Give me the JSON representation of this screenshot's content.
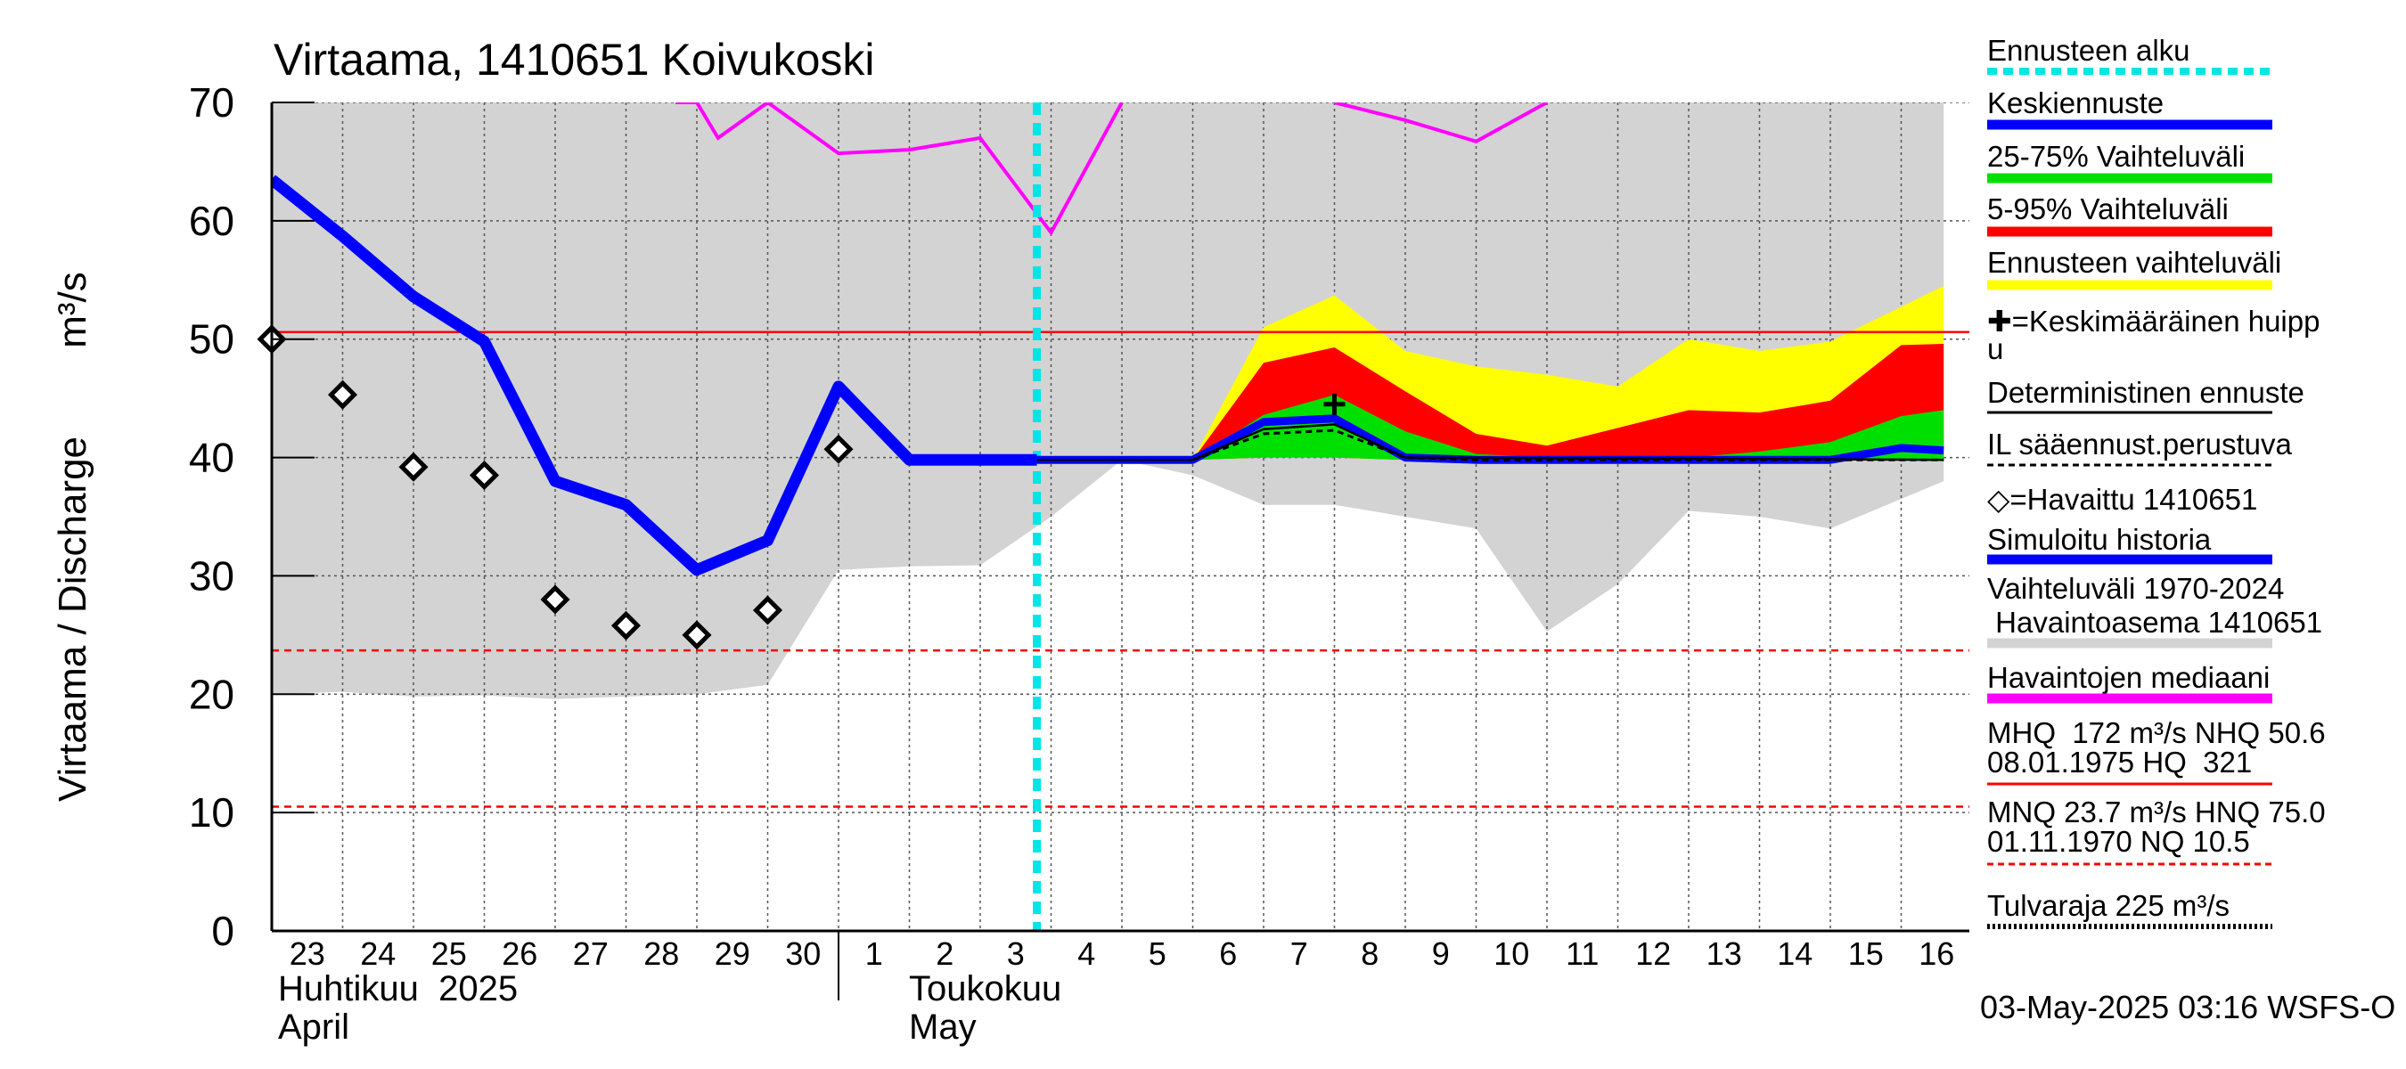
{
  "chart_data": {
    "type": "line",
    "title": "Virtaama, 1410651 Koivukoski",
    "ylabel": "Virtaama / Discharge",
    "yunit": "m³/s",
    "ylim": [
      0,
      70
    ],
    "yticks": [
      "0",
      "10",
      "20",
      "30",
      "40",
      "50",
      "60",
      "70"
    ],
    "grid": true,
    "legend_position": "right",
    "x_day_labels": [
      "23",
      "24",
      "25",
      "26",
      "27",
      "28",
      "29",
      "30",
      "1",
      "2",
      "3",
      "4",
      "5",
      "6",
      "7",
      "8",
      "9",
      "10",
      "11",
      "12",
      "13",
      "14",
      "15",
      "16"
    ],
    "month_labels": [
      {
        "fi": "Huhtikuu  2025",
        "en": "April"
      },
      {
        "fi": "Toukokuu",
        "en": "May"
      }
    ],
    "forecast_start_day": 10.8,
    "reference_lines": {
      "hq_red": 50.6,
      "mnq": 23.7,
      "nq": 10.5
    },
    "historical_range": {
      "upper": [
        [
          0,
          70
        ],
        [
          23.6,
          70
        ]
      ],
      "lower": [
        [
          0,
          20
        ],
        [
          1,
          20.2
        ],
        [
          2,
          19.8
        ],
        [
          3,
          19.9
        ],
        [
          4,
          19.6
        ],
        [
          5,
          19.8
        ],
        [
          6,
          20
        ],
        [
          7,
          20.8
        ],
        [
          8,
          30.5
        ],
        [
          9,
          30.8
        ],
        [
          10,
          30.9
        ],
        [
          11,
          35
        ],
        [
          12,
          39.8
        ],
        [
          13,
          38.5
        ],
        [
          14,
          36
        ],
        [
          15,
          36
        ],
        [
          16,
          35
        ],
        [
          17,
          34
        ],
        [
          18,
          25.3
        ],
        [
          19,
          29.3
        ],
        [
          20,
          35.5
        ],
        [
          21,
          35
        ],
        [
          22,
          34
        ],
        [
          23.6,
          38
        ]
      ]
    },
    "observed_median": [
      [
        5.7,
        70
      ],
      [
        6,
        70
      ],
      [
        6.3,
        67
      ],
      [
        7,
        70
      ],
      [
        8,
        65.7
      ],
      [
        9,
        66
      ],
      [
        10,
        67
      ],
      [
        11,
        59
      ],
      [
        12,
        70
      ]
    ],
    "observed_median_2": [
      [
        15,
        70
      ],
      [
        16,
        68.5
      ],
      [
        17,
        66.7
      ],
      [
        18,
        70
      ]
    ],
    "forecast_range": {
      "upper": [
        [
          13,
          39.8
        ],
        [
          14,
          51
        ],
        [
          15,
          53.7
        ],
        [
          16,
          49
        ],
        [
          17,
          47.7
        ],
        [
          18,
          47
        ],
        [
          19,
          46
        ],
        [
          20,
          50
        ],
        [
          21,
          49
        ],
        [
          22,
          49.8
        ],
        [
          23.6,
          54.5
        ]
      ],
      "lower": [
        [
          13,
          39.8
        ],
        [
          14,
          40
        ],
        [
          15,
          40
        ],
        [
          16,
          39.8
        ],
        [
          17,
          39.8
        ],
        [
          18,
          39.8
        ],
        [
          19,
          39.8
        ],
        [
          20,
          39.8
        ],
        [
          21,
          39.8
        ],
        [
          22,
          39.8
        ],
        [
          23.6,
          39.8
        ]
      ]
    },
    "range_5_95": {
      "upper": [
        [
          13,
          39.8
        ],
        [
          14,
          48
        ],
        [
          15,
          49.3
        ],
        [
          16,
          45.6
        ],
        [
          17,
          42
        ],
        [
          18,
          41
        ],
        [
          19,
          42.5
        ],
        [
          20,
          44
        ],
        [
          21,
          43.8
        ],
        [
          22,
          44.8
        ],
        [
          23,
          49.5
        ],
        [
          23.6,
          49.6
        ]
      ],
      "lower": [
        [
          13,
          39.8
        ],
        [
          14,
          40
        ],
        [
          15,
          40
        ],
        [
          16,
          39.8
        ],
        [
          17,
          39.8
        ],
        [
          18,
          39.8
        ],
        [
          19,
          39.8
        ],
        [
          20,
          39.8
        ],
        [
          21,
          39.8
        ],
        [
          22,
          39.8
        ],
        [
          23.6,
          39.8
        ]
      ]
    },
    "range_25_75": {
      "upper": [
        [
          13,
          39.8
        ],
        [
          14,
          43.6
        ],
        [
          15,
          45.3
        ],
        [
          16,
          42.2
        ],
        [
          17,
          40.3
        ],
        [
          18,
          40
        ],
        [
          19,
          40
        ],
        [
          20,
          40
        ],
        [
          21,
          40.5
        ],
        [
          22,
          41.3
        ],
        [
          23,
          43.5
        ],
        [
          23.6,
          44
        ]
      ],
      "lower": [
        [
          13,
          39.8
        ],
        [
          14,
          40
        ],
        [
          15,
          40
        ],
        [
          16,
          39.8
        ],
        [
          17,
          39.8
        ],
        [
          18,
          39.8
        ],
        [
          19,
          39.8
        ],
        [
          20,
          39.8
        ],
        [
          21,
          39.8
        ],
        [
          22,
          39.8
        ],
        [
          23.6,
          39.8
        ]
      ]
    },
    "simulated_history": [
      [
        0,
        63.5
      ],
      [
        1,
        58.7
      ],
      [
        2,
        53.6
      ],
      [
        3,
        49.8
      ],
      [
        4,
        38
      ],
      [
        5,
        36
      ],
      [
        6,
        30.5
      ],
      [
        7,
        33
      ],
      [
        8,
        46
      ],
      [
        9,
        39.8
      ],
      [
        10,
        39.8
      ],
      [
        10.8,
        39.8
      ]
    ],
    "mean_forecast": [
      [
        10.8,
        39.8
      ],
      [
        13,
        39.8
      ],
      [
        14,
        43
      ],
      [
        15,
        43.3
      ],
      [
        16,
        40
      ],
      [
        17,
        39.8
      ],
      [
        18,
        39.8
      ],
      [
        19,
        39.8
      ],
      [
        20,
        39.8
      ],
      [
        21,
        39.8
      ],
      [
        22,
        39.8
      ],
      [
        23,
        40.8
      ],
      [
        23.6,
        40.6
      ]
    ],
    "deterministic_forecast": [
      [
        10.8,
        39.8
      ],
      [
        13,
        39.8
      ],
      [
        14,
        42.4
      ],
      [
        15,
        42.8
      ],
      [
        16,
        40
      ],
      [
        23.6,
        39.8
      ]
    ],
    "weather_forecast_based": [
      [
        13,
        39.8
      ],
      [
        14,
        42
      ],
      [
        15,
        42.3
      ],
      [
        16,
        40
      ],
      [
        17,
        39.8
      ],
      [
        23.6,
        39.8
      ]
    ],
    "mean_peak": {
      "x": 15,
      "y": 44.5
    },
    "observations": [
      [
        0,
        50
      ],
      [
        1,
        45.3
      ],
      [
        2,
        39.2
      ],
      [
        3,
        38.5
      ],
      [
        4,
        28
      ],
      [
        5,
        25.8
      ],
      [
        6,
        25
      ],
      [
        7,
        27.1
      ],
      [
        8,
        40.7
      ]
    ],
    "legend": [
      {
        "label": "Ennusteen alku",
        "color": "#00e5e5",
        "style": "dotted"
      },
      {
        "label": "Keskiennuste",
        "color": "#0000ff",
        "style": "solid"
      },
      {
        "label": "25-75% Vaihteluväli",
        "color": "#00e000",
        "style": "solid"
      },
      {
        "label": "5-95% Vaihteluväli",
        "color": "#ff0000",
        "style": "solid"
      },
      {
        "label": "Ennusteen vaihteluväli",
        "color": "#ffff00",
        "style": "solid"
      },
      {
        "label": "✚=Keskimääräinen huipp",
        "label2": "u",
        "color": "#000000",
        "style": "none"
      },
      {
        "label": "Deterministinen ennuste",
        "color": "#000000",
        "style": "solid-thin"
      },
      {
        "label": "IL sääennust.perustuva",
        "color": "#000000",
        "style": "dashed"
      },
      {
        "label": "◇=Havaittu 1410651",
        "color": "#000000",
        "style": "none"
      },
      {
        "label": "Simuloitu historia",
        "color": "#0000ff",
        "style": "solid"
      },
      {
        "label": "Vaihteluväli 1970-2024",
        "label2": " Havaintoasema 1410651",
        "color": "#d3d3d3",
        "style": "solid"
      },
      {
        "label": "Havaintojen mediaani",
        "color": "#ff00ff",
        "style": "solid"
      },
      {
        "label": "MHQ  172 m³/s NHQ 50.6",
        "label2": "08.01.1975 HQ  321",
        "color": "#ff0000",
        "style": "solid-thin"
      },
      {
        "label": "MNQ 23.7 m³/s HNQ 75.0",
        "label2": "01.11.1970 NQ 10.5",
        "color": "#ff0000",
        "style": "dashed"
      },
      {
        "label": "Tulvaraja 225 m³/s",
        "color": "#000000",
        "style": "dotted-thick"
      }
    ],
    "footer": "03-May-2025 03:16 WSFS-O",
    "colors": {
      "background_band": "#d3d3d3",
      "median": "#ff00ff",
      "forecast_range": "#ffff00",
      "range_5_95": "#ff0000",
      "range_25_75": "#00e000",
      "mean_line": "#0000ff",
      "forecast_start": "#00e5e5",
      "reference": "#ff0000"
    }
  }
}
